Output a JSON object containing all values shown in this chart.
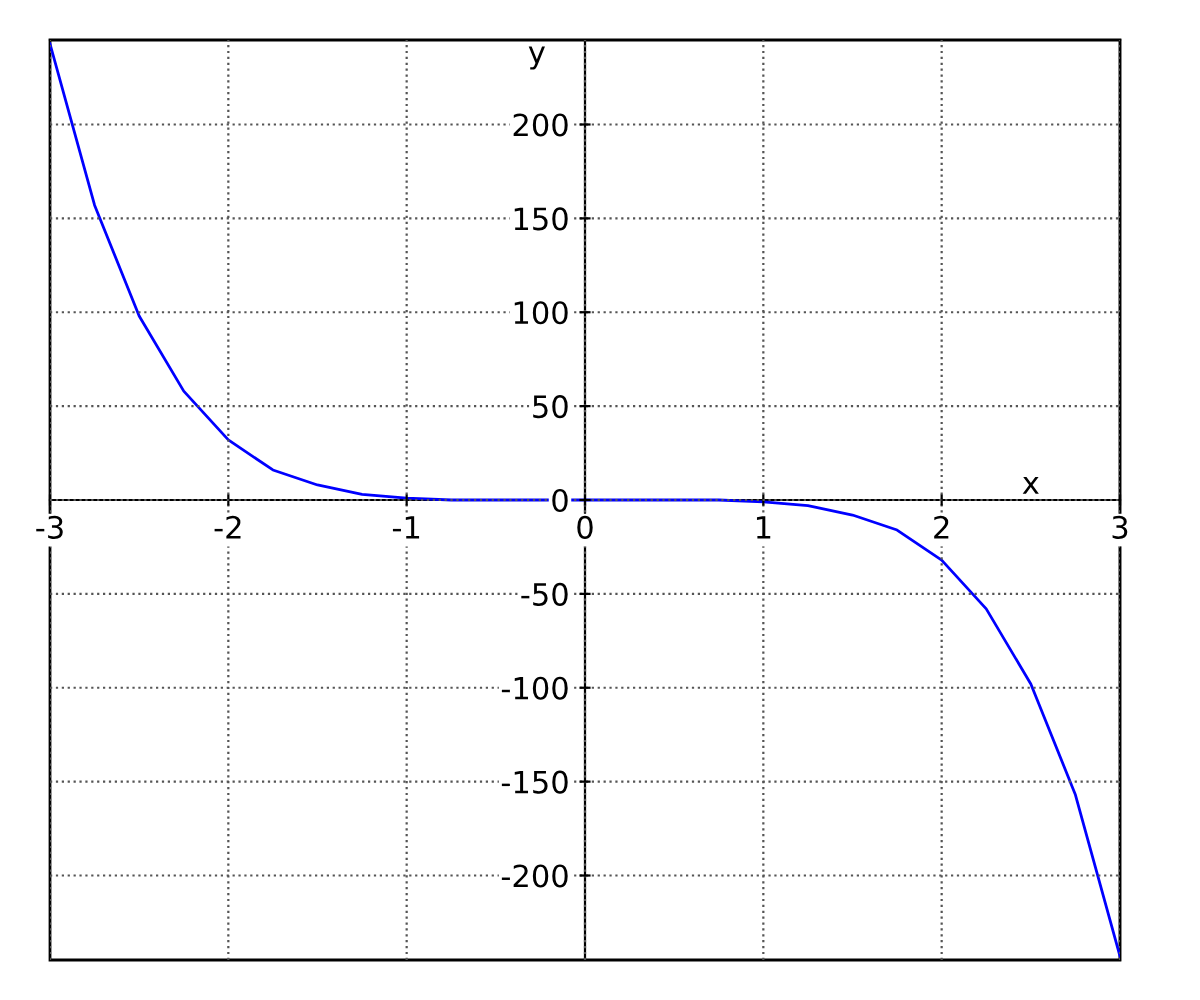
{
  "chart_data": {
    "type": "line",
    "xlabel": "x",
    "ylabel": "y",
    "x": [
      -3,
      -2.75,
      -2.5,
      -2.25,
      -2,
      -1.75,
      -1.5,
      -1.25,
      -1,
      -0.75,
      -0.5,
      -0.25,
      0,
      0.25,
      0.5,
      0.75,
      1,
      1.25,
      1.5,
      1.75,
      2,
      2.25,
      2.5,
      2.75,
      3
    ],
    "series": [
      {
        "color": "#0000ff",
        "values": [
          243,
          157,
          98,
          58,
          32,
          16,
          8,
          3,
          1,
          0,
          0,
          0,
          0,
          0,
          0,
          0,
          -1,
          -3,
          -8,
          -16,
          -32,
          -58,
          -98,
          -157,
          -243
        ]
      }
    ],
    "xlim": [
      -3,
      3
    ],
    "ylim": [
      -245,
      245
    ],
    "xticks": [
      -3,
      -2,
      -1,
      0,
      1,
      2,
      3
    ],
    "yticks": [
      -200,
      -150,
      -100,
      -50,
      0,
      50,
      100,
      150,
      200
    ],
    "grid": true,
    "line_style": "solid",
    "marker": "none"
  }
}
